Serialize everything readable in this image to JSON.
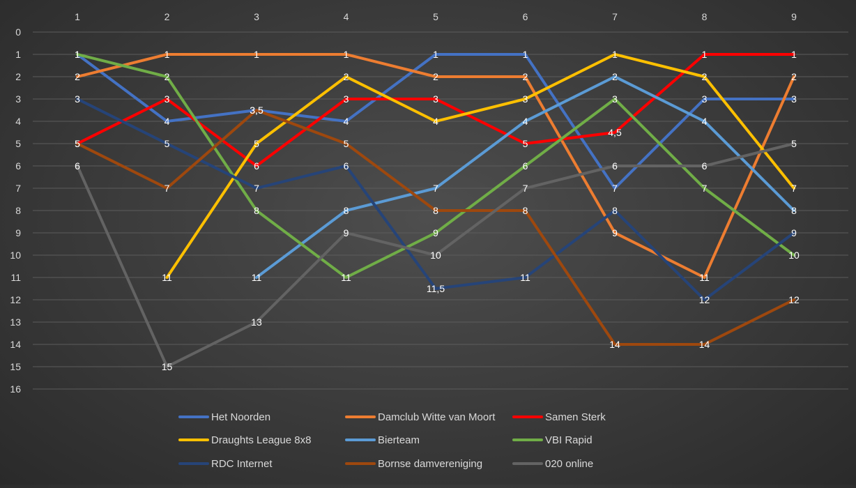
{
  "chart_data": {
    "type": "line",
    "title": "",
    "xlabel": "",
    "ylabel": "",
    "x": [
      1,
      2,
      3,
      4,
      5,
      6,
      7,
      8,
      9
    ],
    "x_axis_position": "top",
    "y_axis_reversed": true,
    "ylim": [
      0,
      16
    ],
    "y_ticks": [
      0,
      1,
      2,
      3,
      4,
      5,
      6,
      7,
      8,
      9,
      10,
      11,
      12,
      13,
      14,
      15,
      16
    ],
    "grid": true,
    "legend_position": "bottom",
    "series": [
      {
        "name": "Het Noorden",
        "color": "#4472C4",
        "values": [
          1,
          4,
          3.5,
          4,
          1,
          1,
          7,
          3,
          3
        ],
        "labels": [
          "1",
          "4",
          "3,5",
          "4",
          "1",
          "1",
          "7",
          "3",
          "3"
        ]
      },
      {
        "name": "Damclub Witte van Moort",
        "color": "#ED7D31",
        "values": [
          2,
          1,
          1,
          1,
          2,
          2,
          9,
          11,
          2
        ],
        "labels": [
          "2",
          "1",
          "1",
          "1",
          "2",
          "2",
          "9",
          "11",
          "2"
        ]
      },
      {
        "name": "Samen Sterk",
        "color": "#FF0000",
        "values": [
          5,
          3,
          6,
          3,
          3,
          5,
          4.5,
          1,
          1
        ],
        "labels": [
          "5",
          "3",
          "6",
          "3",
          "3",
          "5",
          "4,5",
          "1",
          "1"
        ]
      },
      {
        "name": "Draughts League 8x8",
        "color": "#FFC000",
        "values": [
          null,
          11,
          5,
          2,
          4,
          3,
          1,
          2,
          7
        ],
        "labels": [
          null,
          "11",
          "5",
          "2",
          "4",
          "3",
          "1",
          "2",
          "7"
        ]
      },
      {
        "name": "Bierteam",
        "color": "#5B9BD5",
        "values": [
          null,
          null,
          11,
          8,
          7,
          4,
          2,
          4,
          8
        ],
        "labels": [
          null,
          null,
          "11",
          "8",
          "7",
          "4",
          "2",
          "4",
          "8"
        ]
      },
      {
        "name": "VBI Rapid",
        "color": "#70AD47",
        "values": [
          1,
          2,
          8,
          11,
          9,
          6,
          3,
          7,
          10
        ],
        "labels": [
          "1",
          "2",
          "8",
          "11",
          "9",
          "6",
          "3",
          "7",
          "10"
        ]
      },
      {
        "name": "RDC Internet",
        "color": "#264478",
        "values": [
          3,
          5,
          7,
          6,
          11.5,
          11,
          8,
          12,
          9
        ],
        "labels": [
          "3",
          "5",
          "7",
          "6",
          "11,5",
          "11",
          "8",
          "12",
          "9"
        ]
      },
      {
        "name": "Bornse damvereniging",
        "color": "#9E480E",
        "values": [
          5,
          7,
          3.5,
          5,
          8,
          8,
          14,
          14,
          12
        ],
        "labels": [
          "5",
          "7",
          "3,5",
          "5",
          "8",
          "8",
          "14",
          "14",
          "12"
        ]
      },
      {
        "name": "020 online",
        "color": "#636363",
        "values": [
          6,
          15,
          13,
          9,
          10,
          7,
          6,
          6,
          5
        ],
        "labels": [
          "6",
          "15",
          "13",
          "9",
          "10",
          "7",
          "6",
          "6",
          "5"
        ]
      }
    ]
  }
}
